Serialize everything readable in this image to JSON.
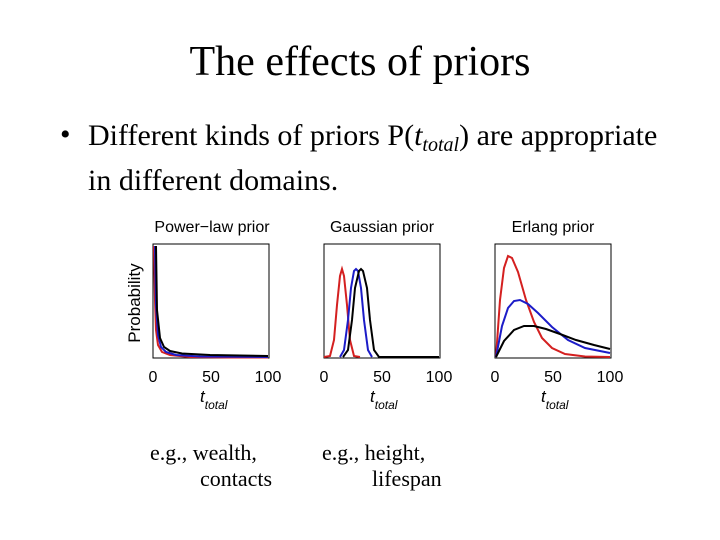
{
  "slide": {
    "title": "The effects of priors",
    "bullet_symbol": "•",
    "bullet": {
      "text_before": "Different kinds of priors P(",
      "var_main": "t",
      "var_sub": "total",
      "text_after": ") are appropriate in different domains."
    }
  },
  "figure": {
    "ylabel": "Probability",
    "panels": [
      {
        "title": "Power−law prior",
        "xticks": [
          "0",
          "50",
          "100"
        ],
        "xlabel_main": "t",
        "xlabel_sub": "total",
        "caption_line1": "e.g., wealth,",
        "caption_line2": "contacts"
      },
      {
        "title": "Gaussian prior",
        "xticks": [
          "0",
          "50",
          "100"
        ],
        "xlabel_main": "t",
        "xlabel_sub": "total",
        "caption_line1": "e.g., height,",
        "caption_line2": "lifespan"
      },
      {
        "title": "Erlang prior",
        "xticks": [
          "0",
          "50",
          "100"
        ],
        "xlabel_main": "t",
        "xlabel_sub": "total"
      }
    ],
    "series_colors": [
      "#d42020",
      "#1c1cc8",
      "#000000"
    ]
  }
}
